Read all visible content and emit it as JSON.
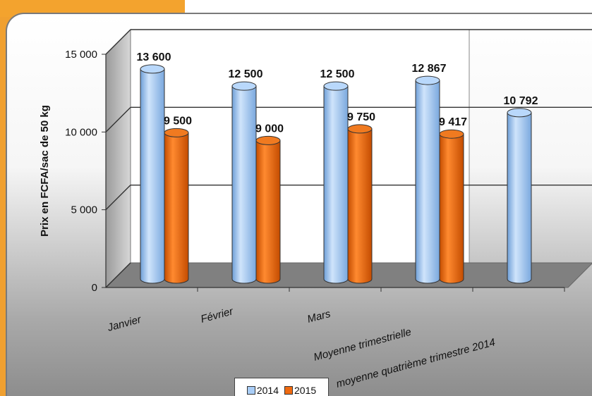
{
  "chart_data": {
    "type": "bar",
    "ylabel": "Prix en FCFA/sac de 50 kg",
    "ylim": [
      0,
      15000
    ],
    "yticks": [
      {
        "value": 0,
        "label": "0"
      },
      {
        "value": 5000,
        "label": "5 000"
      },
      {
        "value": 10000,
        "label": "10 000"
      },
      {
        "value": 15000,
        "label": "15 000"
      }
    ],
    "categories": [
      "Janvier",
      "Février",
      "Mars",
      "Moyenne trimestrielle",
      "moyenne quatrième trimestre 2014"
    ],
    "series": [
      {
        "name": "2014",
        "color": "#a9cdf7",
        "values": [
          13600,
          12500,
          12500,
          12867,
          10792
        ],
        "labels": [
          "13 600",
          "12 500",
          "12 500",
          "12 867",
          "10 792"
        ]
      },
      {
        "name": "2015",
        "color": "#f06a10",
        "values": [
          9500,
          9000,
          9750,
          9417,
          null
        ],
        "labels": [
          "9 500",
          "9 000",
          "9 750",
          "9 417",
          ""
        ]
      }
    ],
    "grid": true,
    "legend_position": "bottom"
  }
}
